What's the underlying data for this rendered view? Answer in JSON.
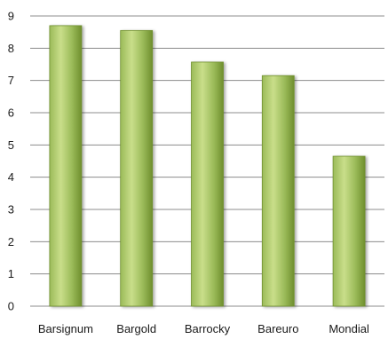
{
  "chart_data": {
    "type": "bar",
    "categories": [
      "Barsignum",
      "Bargold",
      "Barrocky",
      "Bareuro",
      "Mondial"
    ],
    "values": [
      8.7,
      8.55,
      7.57,
      7.15,
      4.65
    ],
    "ylim": [
      0,
      9
    ],
    "yticks": [
      "0",
      "1",
      "2",
      "3",
      "4",
      "5",
      "6",
      "7",
      "8",
      "9"
    ],
    "grid": true,
    "legend": "none",
    "colors": {
      "bar_light": "#c9de8a",
      "bar_mid": "#9bbb59",
      "bar_dark": "#6f8f2e",
      "grid": "#8c8c8c"
    }
  }
}
